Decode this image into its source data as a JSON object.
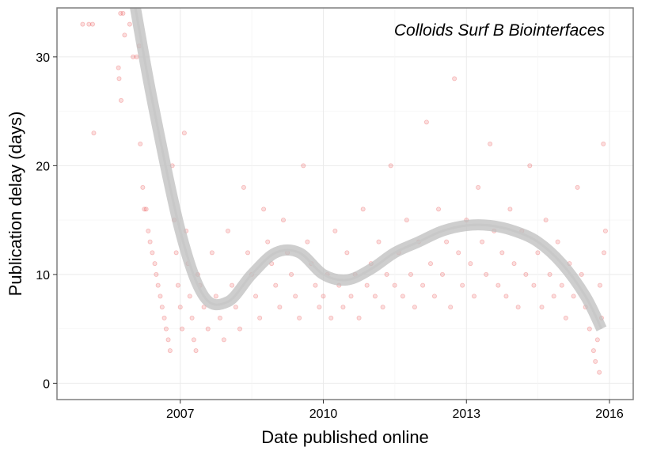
{
  "chart_data": {
    "type": "scatter",
    "title": "",
    "annotation": "Colloids Surf B Biointerfaces",
    "xlabel": "Date published online",
    "ylabel": "Publication delay (days)",
    "x_ticks": [
      "2007",
      "2010",
      "2013",
      "2016"
    ],
    "y_ticks": [
      "0",
      "10",
      "20",
      "30"
    ],
    "xlim": [
      "2004-06-01",
      "2016-07-01"
    ],
    "ylim": [
      -1.5,
      34.5
    ],
    "grid": true,
    "point_color": "#e41a1c",
    "point_alpha": 0.15,
    "smooth_color": "#bdbdbd",
    "smooth_fit": [
      {
        "x": "2006-01-01",
        "y": 36
      },
      {
        "x": "2006-06-01",
        "y": 26
      },
      {
        "x": "2007-01-01",
        "y": 14
      },
      {
        "x": "2007-07-01",
        "y": 8
      },
      {
        "x": "2008-01-01",
        "y": 7.5
      },
      {
        "x": "2008-07-01",
        "y": 10
      },
      {
        "x": "2009-01-01",
        "y": 12
      },
      {
        "x": "2009-07-01",
        "y": 12
      },
      {
        "x": "2010-01-01",
        "y": 10
      },
      {
        "x": "2010-07-01",
        "y": 9.5
      },
      {
        "x": "2011-01-01",
        "y": 10.5
      },
      {
        "x": "2011-07-01",
        "y": 12
      },
      {
        "x": "2012-01-01",
        "y": 13
      },
      {
        "x": "2012-07-01",
        "y": 14
      },
      {
        "x": "2013-01-01",
        "y": 14.5
      },
      {
        "x": "2013-07-01",
        "y": 14.5
      },
      {
        "x": "2014-01-01",
        "y": 14
      },
      {
        "x": "2014-07-01",
        "y": 13
      },
      {
        "x": "2015-01-01",
        "y": 11
      },
      {
        "x": "2015-07-01",
        "y": 8
      },
      {
        "x": "2015-11-01",
        "y": 5
      }
    ],
    "points": [
      {
        "x": "2004-12-15",
        "y": 33
      },
      {
        "x": "2005-02-01",
        "y": 33
      },
      {
        "x": "2005-03-01",
        "y": 33
      },
      {
        "x": "2005-03-10",
        "y": 23
      },
      {
        "x": "2005-10-01",
        "y": 34
      },
      {
        "x": "2005-10-20",
        "y": 34
      },
      {
        "x": "2005-09-15",
        "y": 29
      },
      {
        "x": "2005-09-20",
        "y": 28
      },
      {
        "x": "2005-11-01",
        "y": 32
      },
      {
        "x": "2005-12-10",
        "y": 33
      },
      {
        "x": "2006-01-05",
        "y": 30
      },
      {
        "x": "2006-02-01",
        "y": 30
      },
      {
        "x": "2006-02-20",
        "y": 31
      },
      {
        "x": "2005-10-05",
        "y": 26
      },
      {
        "x": "2006-03-01",
        "y": 22
      },
      {
        "x": "2006-03-20",
        "y": 18
      },
      {
        "x": "2006-04-01",
        "y": 16
      },
      {
        "x": "2006-04-15",
        "y": 16
      },
      {
        "x": "2006-05-01",
        "y": 14
      },
      {
        "x": "2006-05-15",
        "y": 13
      },
      {
        "x": "2006-06-01",
        "y": 12
      },
      {
        "x": "2006-06-20",
        "y": 11
      },
      {
        "x": "2006-07-01",
        "y": 10
      },
      {
        "x": "2006-07-15",
        "y": 9
      },
      {
        "x": "2006-08-01",
        "y": 8
      },
      {
        "x": "2006-08-15",
        "y": 7
      },
      {
        "x": "2006-09-01",
        "y": 6
      },
      {
        "x": "2006-09-15",
        "y": 5
      },
      {
        "x": "2006-10-01",
        "y": 4
      },
      {
        "x": "2006-10-15",
        "y": 3
      },
      {
        "x": "2006-11-01",
        "y": 20
      },
      {
        "x": "2006-11-15",
        "y": 15
      },
      {
        "x": "2006-12-01",
        "y": 12
      },
      {
        "x": "2006-12-15",
        "y": 9
      },
      {
        "x": "2007-01-01",
        "y": 7
      },
      {
        "x": "2007-01-15",
        "y": 5
      },
      {
        "x": "2007-02-01",
        "y": 23
      },
      {
        "x": "2007-02-15",
        "y": 14
      },
      {
        "x": "2007-03-01",
        "y": 11
      },
      {
        "x": "2007-03-15",
        "y": 8
      },
      {
        "x": "2007-04-01",
        "y": 6
      },
      {
        "x": "2007-04-15",
        "y": 4
      },
      {
        "x": "2007-05-01",
        "y": 3
      },
      {
        "x": "2007-05-15",
        "y": 10
      },
      {
        "x": "2007-06-01",
        "y": 9
      },
      {
        "x": "2007-07-01",
        "y": 7
      },
      {
        "x": "2007-08-01",
        "y": 5
      },
      {
        "x": "2007-09-01",
        "y": 12
      },
      {
        "x": "2007-10-01",
        "y": 8
      },
      {
        "x": "2007-11-01",
        "y": 6
      },
      {
        "x": "2007-12-01",
        "y": 4
      },
      {
        "x": "2008-01-01",
        "y": 14
      },
      {
        "x": "2008-02-01",
        "y": 9
      },
      {
        "x": "2008-03-01",
        "y": 7
      },
      {
        "x": "2008-04-01",
        "y": 5
      },
      {
        "x": "2008-05-01",
        "y": 18
      },
      {
        "x": "2008-06-01",
        "y": 12
      },
      {
        "x": "2008-07-01",
        "y": 10
      },
      {
        "x": "2008-08-01",
        "y": 8
      },
      {
        "x": "2008-09-01",
        "y": 6
      },
      {
        "x": "2008-10-01",
        "y": 16
      },
      {
        "x": "2008-11-01",
        "y": 13
      },
      {
        "x": "2008-12-01",
        "y": 11
      },
      {
        "x": "2009-01-01",
        "y": 9
      },
      {
        "x": "2009-02-01",
        "y": 7
      },
      {
        "x": "2009-03-01",
        "y": 15
      },
      {
        "x": "2009-04-01",
        "y": 12
      },
      {
        "x": "2009-05-01",
        "y": 10
      },
      {
        "x": "2009-06-01",
        "y": 8
      },
      {
        "x": "2009-07-01",
        "y": 6
      },
      {
        "x": "2009-08-01",
        "y": 20
      },
      {
        "x": "2009-09-01",
        "y": 13
      },
      {
        "x": "2009-10-01",
        "y": 11
      },
      {
        "x": "2009-11-01",
        "y": 9
      },
      {
        "x": "2009-12-01",
        "y": 7
      },
      {
        "x": "2010-01-01",
        "y": 8
      },
      {
        "x": "2010-02-01",
        "y": 10
      },
      {
        "x": "2010-03-01",
        "y": 6
      },
      {
        "x": "2010-04-01",
        "y": 14
      },
      {
        "x": "2010-05-01",
        "y": 9
      },
      {
        "x": "2010-06-01",
        "y": 7
      },
      {
        "x": "2010-07-01",
        "y": 12
      },
      {
        "x": "2010-08-01",
        "y": 8
      },
      {
        "x": "2010-09-01",
        "y": 10
      },
      {
        "x": "2010-10-01",
        "y": 6
      },
      {
        "x": "2010-11-01",
        "y": 16
      },
      {
        "x": "2010-12-01",
        "y": 9
      },
      {
        "x": "2011-01-01",
        "y": 11
      },
      {
        "x": "2011-02-01",
        "y": 8
      },
      {
        "x": "2011-03-01",
        "y": 13
      },
      {
        "x": "2011-04-01",
        "y": 7
      },
      {
        "x": "2011-05-01",
        "y": 10
      },
      {
        "x": "2011-06-01",
        "y": 20
      },
      {
        "x": "2011-07-01",
        "y": 9
      },
      {
        "x": "2011-08-01",
        "y": 12
      },
      {
        "x": "2011-09-01",
        "y": 8
      },
      {
        "x": "2011-10-01",
        "y": 15
      },
      {
        "x": "2011-11-01",
        "y": 10
      },
      {
        "x": "2011-12-01",
        "y": 7
      },
      {
        "x": "2012-01-01",
        "y": 13
      },
      {
        "x": "2012-02-01",
        "y": 9
      },
      {
        "x": "2012-03-01",
        "y": 24
      },
      {
        "x": "2012-04-01",
        "y": 11
      },
      {
        "x": "2012-05-01",
        "y": 8
      },
      {
        "x": "2012-06-01",
        "y": 16
      },
      {
        "x": "2012-07-01",
        "y": 10
      },
      {
        "x": "2012-08-01",
        "y": 13
      },
      {
        "x": "2012-09-01",
        "y": 7
      },
      {
        "x": "2012-10-01",
        "y": 28
      },
      {
        "x": "2012-11-01",
        "y": 12
      },
      {
        "x": "2012-12-01",
        "y": 9
      },
      {
        "x": "2013-01-01",
        "y": 15
      },
      {
        "x": "2013-02-01",
        "y": 11
      },
      {
        "x": "2013-03-01",
        "y": 8
      },
      {
        "x": "2013-04-01",
        "y": 18
      },
      {
        "x": "2013-05-01",
        "y": 13
      },
      {
        "x": "2013-06-01",
        "y": 10
      },
      {
        "x": "2013-07-01",
        "y": 22
      },
      {
        "x": "2013-08-01",
        "y": 14
      },
      {
        "x": "2013-09-01",
        "y": 9
      },
      {
        "x": "2013-10-01",
        "y": 12
      },
      {
        "x": "2013-11-01",
        "y": 8
      },
      {
        "x": "2013-12-01",
        "y": 16
      },
      {
        "x": "2014-01-01",
        "y": 11
      },
      {
        "x": "2014-02-01",
        "y": 7
      },
      {
        "x": "2014-03-01",
        "y": 14
      },
      {
        "x": "2014-04-01",
        "y": 10
      },
      {
        "x": "2014-05-01",
        "y": 20
      },
      {
        "x": "2014-06-01",
        "y": 9
      },
      {
        "x": "2014-07-01",
        "y": 12
      },
      {
        "x": "2014-08-01",
        "y": 7
      },
      {
        "x": "2014-09-01",
        "y": 15
      },
      {
        "x": "2014-10-01",
        "y": 10
      },
      {
        "x": "2014-11-01",
        "y": 8
      },
      {
        "x": "2014-12-01",
        "y": 13
      },
      {
        "x": "2015-01-01",
        "y": 9
      },
      {
        "x": "2015-02-01",
        "y": 6
      },
      {
        "x": "2015-03-01",
        "y": 11
      },
      {
        "x": "2015-04-01",
        "y": 8
      },
      {
        "x": "2015-05-01",
        "y": 18
      },
      {
        "x": "2015-06-01",
        "y": 10
      },
      {
        "x": "2015-07-01",
        "y": 7
      },
      {
        "x": "2015-08-01",
        "y": 5
      },
      {
        "x": "2015-09-01",
        "y": 3
      },
      {
        "x": "2015-09-15",
        "y": 2
      },
      {
        "x": "2015-10-01",
        "y": 4
      },
      {
        "x": "2015-10-15",
        "y": 1
      },
      {
        "x": "2015-11-01",
        "y": 6
      },
      {
        "x": "2015-11-15",
        "y": 22
      },
      {
        "x": "2015-12-01",
        "y": 14
      },
      {
        "x": "2015-10-20",
        "y": 9
      },
      {
        "x": "2015-11-20",
        "y": 12
      }
    ]
  }
}
